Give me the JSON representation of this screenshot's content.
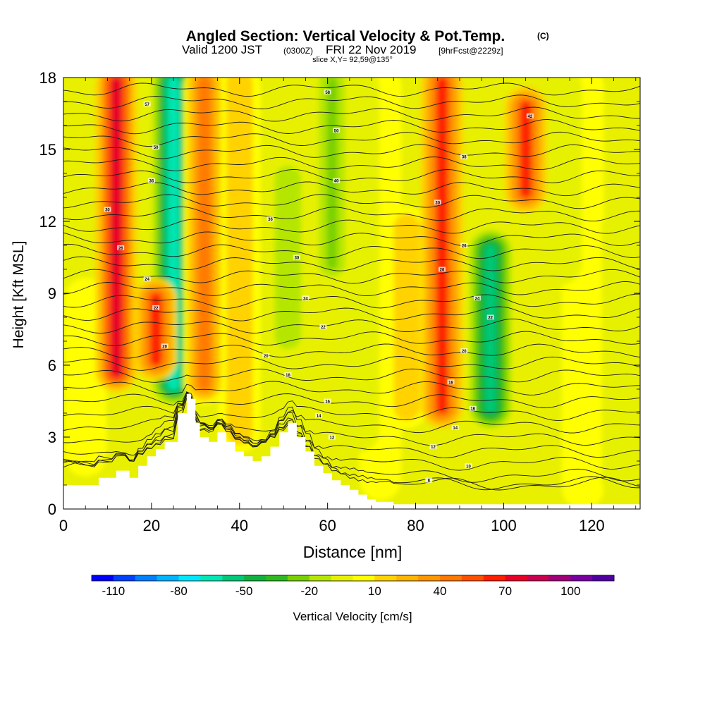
{
  "header": {
    "title": "Angled Section: Vertical Velocity & Pot.Temp.",
    "title_unit": "(C)",
    "valid_prefix": "Valid 1200 JST",
    "valid_utc": "(0300Z)",
    "valid_date": "FRI 22 Nov 2019",
    "forecast": "[9hrFcst@2229z]",
    "slice": "slice X,Y= 92,59@135°"
  },
  "chart_data": {
    "type": "heatmap",
    "title": "Angled Section: Vertical Velocity & Pot.Temp. (C)",
    "xlabel": "Distance [nm]",
    "ylabel": "Height [Kft MSL]",
    "xlim": [
      0,
      131
    ],
    "ylim": [
      0,
      18
    ],
    "x_ticks": [
      0,
      20,
      40,
      60,
      80,
      100,
      120
    ],
    "y_ticks": [
      0,
      3,
      6,
      9,
      12,
      15,
      18
    ],
    "colorbar": {
      "label": "Vertical Velocity [cm/s]",
      "tick_labels": [
        "-110",
        "-80",
        "-50",
        "-20",
        "10",
        "40",
        "70",
        "100"
      ],
      "tick_values": [
        -110,
        -80,
        -50,
        -20,
        10,
        40,
        70,
        100
      ],
      "range": [
        -120,
        120
      ],
      "colors": [
        "#0000ff",
        "#0040ff",
        "#0080ff",
        "#00b4ff",
        "#00e6ff",
        "#00e6b4",
        "#00c878",
        "#10b040",
        "#30b820",
        "#78d000",
        "#b4e600",
        "#e6f000",
        "#ffff00",
        "#ffd200",
        "#ffb400",
        "#ff9600",
        "#ff7800",
        "#ff5000",
        "#ff1e00",
        "#e60028",
        "#c80050",
        "#a00078",
        "#7800a0",
        "#5000a0"
      ]
    },
    "updrafts_cm_s": [
      {
        "x": 12,
        "y_min": 5.5,
        "y_max": 18,
        "peak": 70
      },
      {
        "x": 21,
        "y_min": 6,
        "y_max": 9,
        "peak": 60
      },
      {
        "x": 32,
        "y_min": 5,
        "y_max": 18,
        "peak": 40
      },
      {
        "x": 86,
        "y_min": 4,
        "y_max": 18,
        "peak": 60
      },
      {
        "x": 105,
        "y_min": 13,
        "y_max": 17,
        "peak": 60
      }
    ],
    "downdrafts_cm_s": [
      {
        "x": 25,
        "y_min": 5,
        "y_max": 18,
        "peak": -70
      },
      {
        "x": 51,
        "y_min": 7,
        "y_max": 14,
        "peak": -20
      },
      {
        "x": 61,
        "y_min": 10,
        "y_max": 18,
        "peak": -25
      },
      {
        "x": 97,
        "y_min": 4,
        "y_max": 11,
        "peak": -55
      }
    ],
    "terrain_kft": {
      "x": [
        0,
        6,
        8,
        12,
        15,
        17,
        19,
        21,
        23,
        26,
        28,
        29,
        30,
        31,
        33,
        35,
        37,
        39,
        41,
        43,
        45,
        47,
        49,
        51,
        53,
        55,
        57,
        59,
        61,
        63,
        65,
        67,
        69,
        71,
        75,
        131
      ],
      "y": [
        1.0,
        1.0,
        1.3,
        1.6,
        1.3,
        1.8,
        2.2,
        2.5,
        2.8,
        4.0,
        4.8,
        4.6,
        3.6,
        3.0,
        2.8,
        3.2,
        2.8,
        2.4,
        2.2,
        2.0,
        2.2,
        2.6,
        3.2,
        3.6,
        3.0,
        2.4,
        1.8,
        1.5,
        1.2,
        1.0,
        0.8,
        0.6,
        0.4,
        0.3,
        0.2,
        0.2
      ]
    },
    "contour_labels": [
      {
        "x": 19,
        "y": 16.9,
        "text": "57"
      },
      {
        "x": 21,
        "y": 15.1,
        "text": "50"
      },
      {
        "x": 20,
        "y": 13.7,
        "text": "36"
      },
      {
        "x": 10,
        "y": 12.5,
        "text": "30"
      },
      {
        "x": 13,
        "y": 10.9,
        "text": "26"
      },
      {
        "x": 19,
        "y": 9.6,
        "text": "24"
      },
      {
        "x": 21,
        "y": 8.4,
        "text": "22"
      },
      {
        "x": 23,
        "y": 6.8,
        "text": "20"
      },
      {
        "x": 60,
        "y": 17.4,
        "text": "58"
      },
      {
        "x": 62,
        "y": 15.8,
        "text": "50"
      },
      {
        "x": 62,
        "y": 13.7,
        "text": "40"
      },
      {
        "x": 47,
        "y": 12.1,
        "text": "36"
      },
      {
        "x": 53,
        "y": 10.5,
        "text": "30"
      },
      {
        "x": 55,
        "y": 8.8,
        "text": "24"
      },
      {
        "x": 59,
        "y": 7.6,
        "text": "22"
      },
      {
        "x": 46,
        "y": 6.4,
        "text": "20"
      },
      {
        "x": 51,
        "y": 5.6,
        "text": "18"
      },
      {
        "x": 60,
        "y": 4.5,
        "text": "16"
      },
      {
        "x": 58,
        "y": 3.9,
        "text": "14"
      },
      {
        "x": 61,
        "y": 3.0,
        "text": "12"
      },
      {
        "x": 91,
        "y": 14.7,
        "text": "38"
      },
      {
        "x": 106,
        "y": 16.4,
        "text": "42"
      },
      {
        "x": 85,
        "y": 12.8,
        "text": "30"
      },
      {
        "x": 91,
        "y": 11.0,
        "text": "26"
      },
      {
        "x": 86,
        "y": 10.0,
        "text": "26"
      },
      {
        "x": 94,
        "y": 8.8,
        "text": "24"
      },
      {
        "x": 97,
        "y": 8.0,
        "text": "22"
      },
      {
        "x": 91,
        "y": 6.6,
        "text": "20"
      },
      {
        "x": 88,
        "y": 5.3,
        "text": "18"
      },
      {
        "x": 93,
        "y": 4.2,
        "text": "16"
      },
      {
        "x": 89,
        "y": 3.4,
        "text": "14"
      },
      {
        "x": 84,
        "y": 2.6,
        "text": "12"
      },
      {
        "x": 92,
        "y": 1.8,
        "text": "10"
      },
      {
        "x": 83,
        "y": 1.2,
        "text": "8"
      }
    ]
  }
}
